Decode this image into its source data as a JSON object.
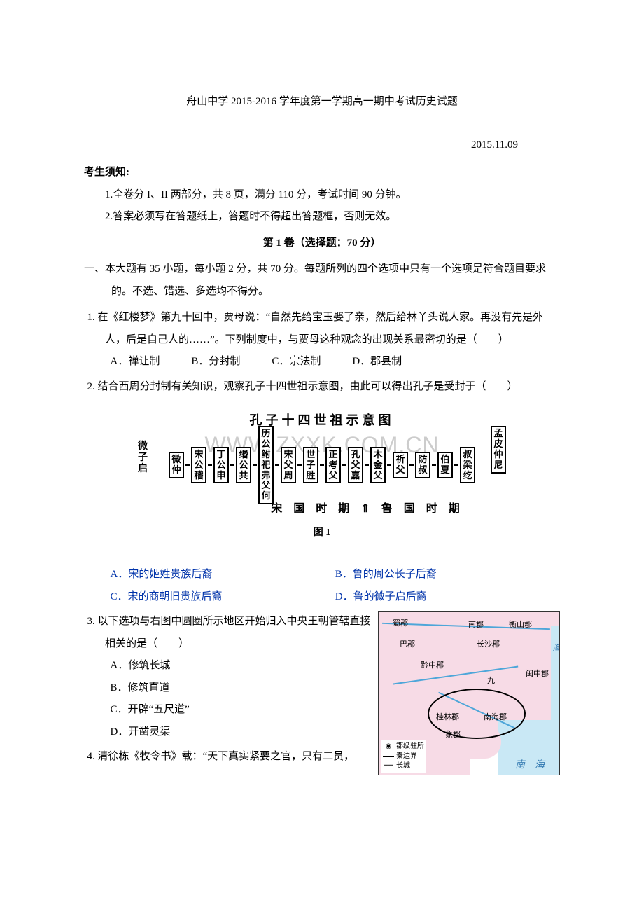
{
  "title": "舟山中学 2015-2016 学年度第一学期高一期中考试历史试题",
  "date": "2015.11.09",
  "notice_header": "考生须知:",
  "notice_items": [
    "1.全卷分 I、II 两部分，共 8 页，满分 110 分，考试时间 90 分钟。",
    "2.答案必须写在答题纸上，答题时不得超出答题框，否则无效。"
  ],
  "section_header": "第 1 卷（选择题：70 分）",
  "instruction": "一、本大题有 35 小题，每小题 2 分，共 70 分。每题所列的四个选项中只有一个选项是符合题目要求的。不选、错选、多选均不得分。",
  "q1": {
    "text": "1. 在《红楼梦》第九十回中，贾母说：“自然先给宝玉娶了亲，然后给林丫头说人家。再没有先是外人，后是自己人的……”。下列制度中，与贾母这种观念的出现关系最密切的是（　　）",
    "options": "A．禅让制　　　B．分封制　　　C．宗法制　　　D．郡县制"
  },
  "q2": {
    "text": "2. 结合西周分封制有关知识，观察孔子十四世祖示意图，由此可以得出孔子是受封于（　　）",
    "diagram": {
      "title": "孔子十四世祖示意图",
      "left_label": "微子启",
      "right_label": "孟皮仲尼",
      "boxes": [
        "微仲",
        "宋公稽",
        "丁公申",
        "缗公共",
        "历公\n鲋祀\n弗父何",
        "宋父周",
        "世子胜",
        "正考父",
        "孔父嘉",
        "木金父",
        "祈父",
        "防叔",
        "伯夏",
        "叔梁纥"
      ],
      "period": "宋 国 时 期 ⇑ 鲁 国 时 期",
      "fig": "图 1",
      "watermark": "WWW.ZXXK.COM.CN"
    },
    "opt_a": "A．宋的姬姓贵族后裔",
    "opt_b": "B．鲁的周公长子后裔",
    "opt_c": "C．宋的商朝旧贵族后裔",
    "opt_d": "D．鲁的微子启后裔"
  },
  "q3": {
    "text": "3. 以下选项与右图中圆圈所示地区开始归入中央王朝管辖直接相关的是（　　）",
    "opt_a": "A．修筑长城",
    "opt_b": "B．修筑直道",
    "opt_c": "C．开辟“五尺道”",
    "opt_d": "D．开凿灵渠",
    "map": {
      "labels": [
        "蜀郡",
        "巴郡",
        "黔中郡",
        "长沙郡",
        "衡山郡",
        "南郡",
        "九",
        "闽中郡",
        "桂林郡",
        "南海郡",
        "象郡"
      ],
      "sea": "南　海",
      "side": "海",
      "legend": {
        "h1": "郡级驻所",
        "h2": "秦边界",
        "h3": "长城"
      }
    }
  },
  "q4": {
    "text": "4. 清徐栋《牧令书》载：“天下真实紧要之官，只有二员，"
  }
}
